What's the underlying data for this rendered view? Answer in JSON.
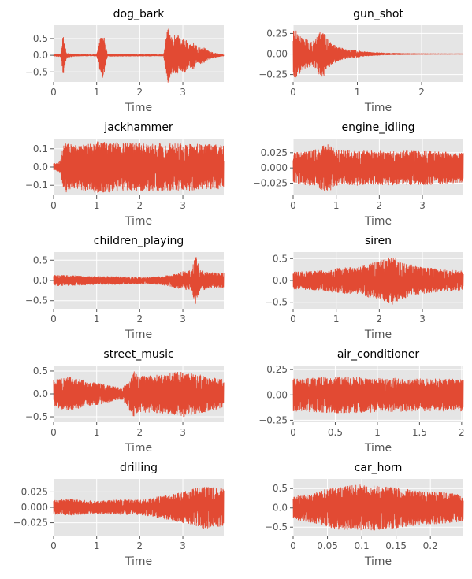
{
  "chart_data": [
    {
      "type": "line",
      "title": "dog_bark",
      "xlabel": "Time",
      "xlim": [
        0,
        3.95
      ],
      "ylim": [
        -0.8,
        0.9
      ],
      "xticks": [
        0,
        1,
        2,
        3
      ],
      "xtick_labels": [
        "0",
        "1",
        "2",
        "3"
      ],
      "yticks": [
        -0.5,
        0.0,
        0.5
      ],
      "ytick_labels": [
        "−0.5",
        "0.0",
        "0.5"
      ],
      "waveform_envelope": {
        "t": [
          0,
          0.18,
          0.22,
          0.3,
          0.6,
          1.0,
          1.08,
          1.15,
          1.25,
          2.55,
          2.65,
          2.75,
          2.85,
          2.95,
          3.05,
          3.15,
          3.25,
          3.35,
          3.45,
          3.6,
          3.8,
          3.95
        ],
        "amplitude": [
          0.02,
          0.05,
          0.68,
          0.06,
          0.02,
          0.02,
          0.5,
          0.72,
          0.03,
          0.02,
          0.85,
          0.5,
          0.7,
          0.45,
          0.55,
          0.35,
          0.42,
          0.22,
          0.28,
          0.12,
          0.05,
          0.02
        ]
      },
      "series_color": "#E24A33",
      "grid": true
    },
    {
      "type": "line",
      "title": "gun_shot",
      "xlabel": "Time",
      "xlim": [
        0,
        2.65
      ],
      "ylim": [
        -0.34,
        0.35
      ],
      "xticks": [
        0,
        1,
        2
      ],
      "xtick_labels": [
        "0",
        "1",
        "2"
      ],
      "yticks": [
        -0.25,
        0.0,
        0.25
      ],
      "ytick_labels": [
        "−0.25",
        "0.00",
        "0.25"
      ],
      "waveform_envelope": {
        "t": [
          0,
          0.05,
          0.15,
          0.3,
          0.45,
          0.6,
          0.8,
          1.0,
          1.2,
          1.5,
          2.0,
          2.65
        ],
        "amplitude": [
          0.3,
          0.28,
          0.2,
          0.14,
          0.3,
          0.12,
          0.06,
          0.04,
          0.02,
          0.01,
          0.005,
          0.003
        ]
      },
      "series_color": "#E24A33",
      "grid": true
    },
    {
      "type": "line",
      "title": "jackhammer",
      "xlabel": "Time",
      "xlim": [
        0,
        3.95
      ],
      "ylim": [
        -0.155,
        0.155
      ],
      "xticks": [
        0,
        1,
        2,
        3
      ],
      "xtick_labels": [
        "0",
        "1",
        "2",
        "3"
      ],
      "yticks": [
        -0.1,
        0.0,
        0.1
      ],
      "ytick_labels": [
        "−0.1",
        "0.0",
        "0.1"
      ],
      "waveform_envelope": {
        "t": [
          0,
          0.15,
          0.25,
          0.5,
          1.0,
          2.0,
          3.0,
          3.95
        ],
        "amplitude": [
          0.02,
          0.03,
          0.14,
          0.12,
          0.14,
          0.13,
          0.13,
          0.12
        ]
      },
      "series_color": "#E24A33",
      "grid": true
    },
    {
      "type": "line",
      "title": "engine_idling",
      "xlabel": "Time",
      "xlim": [
        0,
        3.95
      ],
      "ylim": [
        -0.045,
        0.048
      ],
      "xticks": [
        0,
        1,
        2,
        3
      ],
      "xtick_labels": [
        "0",
        "1",
        "2",
        "3"
      ],
      "yticks": [
        -0.025,
        0.0,
        0.025
      ],
      "ytick_labels": [
        "−0.025",
        "0.000",
        "0.025"
      ],
      "waveform_envelope": {
        "t": [
          0,
          0.5,
          0.8,
          1.0,
          2.0,
          3.0,
          3.95
        ],
        "amplitude": [
          0.025,
          0.03,
          0.04,
          0.03,
          0.028,
          0.028,
          0.025
        ]
      },
      "series_color": "#E24A33",
      "grid": true
    },
    {
      "type": "line",
      "title": "children_playing",
      "xlabel": "Time",
      "xlim": [
        0,
        3.95
      ],
      "ylim": [
        -0.7,
        0.7
      ],
      "xticks": [
        0,
        1,
        2,
        3
      ],
      "xtick_labels": [
        "0",
        "1",
        "2",
        "3"
      ],
      "yticks": [
        -0.5,
        0.0,
        0.5
      ],
      "ytick_labels": [
        "−0.5",
        "0.0",
        "0.5"
      ],
      "waveform_envelope": {
        "t": [
          0,
          0.5,
          1.0,
          1.5,
          2.0,
          2.5,
          3.0,
          3.2,
          3.3,
          3.4,
          3.6,
          3.95
        ],
        "amplitude": [
          0.13,
          0.12,
          0.1,
          0.1,
          0.08,
          0.1,
          0.22,
          0.25,
          0.62,
          0.25,
          0.2,
          0.18
        ]
      },
      "series_color": "#E24A33",
      "grid": true
    },
    {
      "type": "line",
      "title": "siren",
      "xlabel": "Time",
      "xlim": [
        0,
        3.95
      ],
      "ylim": [
        -0.65,
        0.65
      ],
      "xticks": [
        0,
        1,
        2,
        3
      ],
      "xtick_labels": [
        "0",
        "1",
        "2",
        "3"
      ],
      "yticks": [
        -0.5,
        0.0,
        0.5
      ],
      "ytick_labels": [
        "−0.5",
        "0.0",
        "0.5"
      ],
      "waveform_envelope": {
        "t": [
          0,
          0.5,
          1.0,
          1.5,
          2.0,
          2.3,
          2.6,
          3.0,
          3.5,
          3.95
        ],
        "amplitude": [
          0.2,
          0.22,
          0.28,
          0.32,
          0.45,
          0.55,
          0.4,
          0.3,
          0.25,
          0.22
        ]
      },
      "series_color": "#E24A33",
      "grid": true
    },
    {
      "type": "line",
      "title": "street_music",
      "xlabel": "Time",
      "xlim": [
        0,
        3.95
      ],
      "ylim": [
        -0.62,
        0.62
      ],
      "xticks": [
        0,
        1,
        2,
        3
      ],
      "xtick_labels": [
        "0",
        "1",
        "2",
        "3"
      ],
      "yticks": [
        -0.5,
        0.0,
        0.5
      ],
      "ytick_labels": [
        "−0.5",
        "0.0",
        "0.5"
      ],
      "waveform_envelope": {
        "t": [
          0,
          0.4,
          0.8,
          1.2,
          1.6,
          1.85,
          2.0,
          2.5,
          3.0,
          3.5,
          3.95
        ],
        "amplitude": [
          0.3,
          0.38,
          0.28,
          0.2,
          0.12,
          0.5,
          0.4,
          0.42,
          0.5,
          0.4,
          0.32
        ]
      },
      "series_color": "#E24A33",
      "grid": true
    },
    {
      "type": "line",
      "title": "air_conditioner",
      "xlabel": "Time",
      "xlim": [
        0,
        2.02
      ],
      "ylim": [
        -0.27,
        0.29
      ],
      "xticks": [
        0,
        0.5,
        1,
        1.5,
        2
      ],
      "xtick_labels": [
        "0",
        "0.5",
        "1",
        "1.5",
        "2"
      ],
      "yticks": [
        -0.25,
        0.0,
        0.25
      ],
      "ytick_labels": [
        "−0.25",
        "0.00",
        "0.25"
      ],
      "waveform_envelope": {
        "t": [
          0,
          0.5,
          1.0,
          1.5,
          2.02
        ],
        "amplitude": [
          0.16,
          0.18,
          0.17,
          0.16,
          0.16
        ]
      },
      "series_color": "#E24A33",
      "grid": true
    },
    {
      "type": "line",
      "title": "drilling",
      "xlabel": "Time",
      "xlim": [
        0,
        3.95
      ],
      "ylim": [
        -0.046,
        0.046
      ],
      "xticks": [
        0,
        1,
        2,
        3
      ],
      "xtick_labels": [
        "0",
        "1",
        "2",
        "3"
      ],
      "yticks": [
        -0.025,
        0.0,
        0.025
      ],
      "ytick_labels": [
        "−0.025",
        "0.000",
        "0.025"
      ],
      "waveform_envelope": {
        "t": [
          0,
          0.5,
          1.0,
          1.5,
          2.0,
          2.5,
          3.0,
          3.5,
          3.95
        ],
        "amplitude": [
          0.012,
          0.013,
          0.01,
          0.012,
          0.012,
          0.018,
          0.025,
          0.035,
          0.03
        ]
      },
      "series_color": "#E24A33",
      "grid": true
    },
    {
      "type": "line",
      "title": "car_horn",
      "xlabel": "Time",
      "xlim": [
        0,
        0.248
      ],
      "ylim": [
        -0.72,
        0.75
      ],
      "xticks": [
        0,
        0.05,
        0.1,
        0.15,
        0.2
      ],
      "xtick_labels": [
        "0",
        "0.05",
        "0.1",
        "0.15",
        "0.2"
      ],
      "yticks": [
        -0.5,
        0.0,
        0.5
      ],
      "ytick_labels": [
        "−0.5",
        "0.0",
        "0.5"
      ],
      "waveform_envelope": {
        "t": [
          0,
          0.03,
          0.06,
          0.1,
          0.14,
          0.18,
          0.22,
          0.248
        ],
        "amplitude": [
          0.3,
          0.4,
          0.55,
          0.6,
          0.55,
          0.45,
          0.4,
          0.35
        ]
      },
      "series_color": "#E24A33",
      "grid": true
    }
  ]
}
